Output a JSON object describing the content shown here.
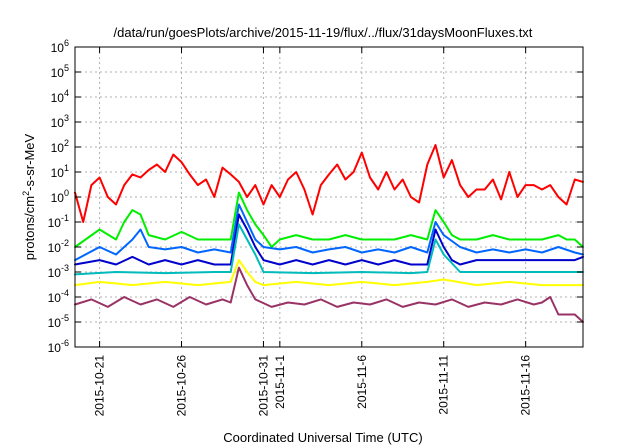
{
  "chart_data": {
    "type": "line",
    "title": "/data/run/goesPlots/archive/2015-11-19/flux/../flux/31daysMoonFluxes.txt",
    "xlabel": "Coordinated Universal Time (UTC)",
    "ylabel_parts": [
      "protons/cm",
      "2",
      "-s-sr-MeV"
    ],
    "y_scale": "log",
    "ylim": [
      1e-06,
      1000000.0
    ],
    "y_ticks": [
      {
        "base": "10",
        "exp": "-6",
        "value": 1e-06
      },
      {
        "base": "10",
        "exp": "-5",
        "value": 1e-05
      },
      {
        "base": "10",
        "exp": "-4",
        "value": 0.0001
      },
      {
        "base": "10",
        "exp": "-3",
        "value": 0.001
      },
      {
        "base": "10",
        "exp": "-2",
        "value": 0.01
      },
      {
        "base": "10",
        "exp": "-1",
        "value": 0.1
      },
      {
        "base": "10",
        "exp": "0",
        "value": 1
      },
      {
        "base": "10",
        "exp": "1",
        "value": 10
      },
      {
        "base": "10",
        "exp": "2",
        "value": 100
      },
      {
        "base": "10",
        "exp": "3",
        "value": 1000
      },
      {
        "base": "10",
        "exp": "4",
        "value": 10000
      },
      {
        "base": "10",
        "exp": "5",
        "value": 100000
      },
      {
        "base": "10",
        "exp": "6",
        "value": 1000000
      }
    ],
    "xlim": [
      "2015-10-19T12:00",
      "2015-11-19T12:00"
    ],
    "x_ticks": [
      {
        "label": "2015-10-21",
        "date": "2015-10-21"
      },
      {
        "label": "2015-10-26",
        "date": "2015-10-26"
      },
      {
        "label": "2015-10-31",
        "date": "2015-10-31"
      },
      {
        "label": "2015-11-1",
        "date": "2015-11-01"
      },
      {
        "label": "2015-11-6",
        "date": "2015-11-06"
      },
      {
        "label": "2015-11-11",
        "date": "2015-11-11"
      },
      {
        "label": "2015-11-16",
        "date": "2015-11-16"
      }
    ],
    "grid": true,
    "series": [
      {
        "color": "#ff0000",
        "x": [
          "2015-10-19T12:00",
          "2015-10-20T00:00",
          "2015-10-20T12:00",
          "2015-10-21T00:00",
          "2015-10-21T12:00",
          "2015-10-22T00:00",
          "2015-10-22T12:00",
          "2015-10-23T00:00",
          "2015-10-23T12:00",
          "2015-10-24T00:00",
          "2015-10-24T12:00",
          "2015-10-25T00:00",
          "2015-10-25T12:00",
          "2015-10-26T00:00",
          "2015-10-26T12:00",
          "2015-10-27T00:00",
          "2015-10-27T12:00",
          "2015-10-28T00:00",
          "2015-10-28T12:00",
          "2015-10-29T00:00",
          "2015-10-29T12:00",
          "2015-10-30T00:00",
          "2015-10-30T12:00",
          "2015-10-31T00:00",
          "2015-10-31T12:00",
          "2015-11-01T00:00",
          "2015-11-01T12:00",
          "2015-11-02T00:00",
          "2015-11-02T12:00",
          "2015-11-03T00:00",
          "2015-11-03T12:00",
          "2015-11-04T00:00",
          "2015-11-04T12:00",
          "2015-11-05T00:00",
          "2015-11-05T12:00",
          "2015-11-06T00:00",
          "2015-11-06T12:00",
          "2015-11-07T00:00",
          "2015-11-07T12:00",
          "2015-11-08T00:00",
          "2015-11-08T12:00",
          "2015-11-09T00:00",
          "2015-11-09T12:00",
          "2015-11-10T00:00",
          "2015-11-10T12:00",
          "2015-11-11T00:00",
          "2015-11-11T12:00",
          "2015-11-12T00:00",
          "2015-11-12T12:00",
          "2015-11-13T00:00",
          "2015-11-13T12:00",
          "2015-11-14T00:00",
          "2015-11-14T12:00",
          "2015-11-15T00:00",
          "2015-11-15T12:00",
          "2015-11-16T00:00",
          "2015-11-16T12:00",
          "2015-11-17T00:00",
          "2015-11-17T12:00",
          "2015-11-18T00:00",
          "2015-11-18T12:00",
          "2015-11-19T00:00",
          "2015-11-19T12:00"
        ],
        "values": [
          1.5,
          0.1,
          3,
          6,
          1,
          0.5,
          3,
          8,
          6,
          12,
          20,
          10,
          50,
          25,
          8,
          3,
          5,
          1,
          15,
          8,
          4,
          1,
          3,
          0.5,
          3,
          1,
          5,
          10,
          2,
          0.2,
          3,
          8,
          20,
          5,
          10,
          60,
          6,
          2,
          10,
          2,
          5,
          1,
          0.6,
          20,
          120,
          6,
          30,
          3,
          1,
          2,
          2,
          5,
          0.8,
          10,
          1,
          3,
          3,
          2,
          3,
          1,
          0.5,
          5,
          4
        ]
      },
      {
        "color": "#00ee00",
        "x": [
          "2015-10-19T12:00",
          "2015-10-21T00:00",
          "2015-10-22T00:00",
          "2015-10-22T12:00",
          "2015-10-23T00:00",
          "2015-10-23T12:00",
          "2015-10-24T00:00",
          "2015-10-25T00:00",
          "2015-10-26T00:00",
          "2015-10-27T00:00",
          "2015-10-28T00:00",
          "2015-10-29T00:00",
          "2015-10-29T12:00",
          "2015-10-30T00:00",
          "2015-10-30T12:00",
          "2015-10-31T00:00",
          "2015-10-31T12:00",
          "2015-11-01T00:00",
          "2015-11-02T00:00",
          "2015-11-03T00:00",
          "2015-11-04T00:00",
          "2015-11-05T00:00",
          "2015-11-06T00:00",
          "2015-11-07T00:00",
          "2015-11-08T00:00",
          "2015-11-09T00:00",
          "2015-11-10T00:00",
          "2015-11-10T12:00",
          "2015-11-11T00:00",
          "2015-11-11T12:00",
          "2015-11-12T00:00",
          "2015-11-13T00:00",
          "2015-11-14T00:00",
          "2015-11-15T00:00",
          "2015-11-16T00:00",
          "2015-11-17T00:00",
          "2015-11-18T00:00",
          "2015-11-18T12:00",
          "2015-11-19T00:00",
          "2015-11-19T12:00"
        ],
        "values": [
          0.01,
          0.05,
          0.02,
          0.1,
          0.3,
          0.2,
          0.03,
          0.02,
          0.04,
          0.02,
          0.02,
          0.02,
          1.5,
          0.3,
          0.08,
          0.03,
          0.01,
          0.02,
          0.03,
          0.02,
          0.02,
          0.03,
          0.02,
          0.02,
          0.02,
          0.03,
          0.02,
          0.3,
          0.1,
          0.03,
          0.02,
          0.02,
          0.03,
          0.02,
          0.02,
          0.02,
          0.03,
          0.02,
          0.02,
          0.01
        ]
      },
      {
        "color": "#0066ff",
        "x": [
          "2015-10-19T12:00",
          "2015-10-21T00:00",
          "2015-10-22T00:00",
          "2015-10-23T00:00",
          "2015-10-23T12:00",
          "2015-10-24T00:00",
          "2015-10-25T00:00",
          "2015-10-26T00:00",
          "2015-10-27T00:00",
          "2015-10-28T00:00",
          "2015-10-29T00:00",
          "2015-10-29T12:00",
          "2015-10-30T00:00",
          "2015-10-30T12:00",
          "2015-10-31T00:00",
          "2015-11-01T00:00",
          "2015-11-02T00:00",
          "2015-11-03T00:00",
          "2015-11-04T00:00",
          "2015-11-05T00:00",
          "2015-11-06T00:00",
          "2015-11-07T00:00",
          "2015-11-08T00:00",
          "2015-11-09T00:00",
          "2015-11-10T00:00",
          "2015-11-10T12:00",
          "2015-11-11T00:00",
          "2015-11-12T00:00",
          "2015-11-13T00:00",
          "2015-11-14T00:00",
          "2015-11-15T00:00",
          "2015-11-16T00:00",
          "2015-11-17T00:00",
          "2015-11-18T00:00",
          "2015-11-19T00:00",
          "2015-11-19T12:00"
        ],
        "values": [
          0.003,
          0.01,
          0.005,
          0.02,
          0.05,
          0.01,
          0.008,
          0.01,
          0.006,
          0.008,
          0.006,
          0.5,
          0.1,
          0.02,
          0.01,
          0.008,
          0.01,
          0.006,
          0.008,
          0.01,
          0.006,
          0.008,
          0.006,
          0.01,
          0.006,
          0.1,
          0.03,
          0.01,
          0.006,
          0.008,
          0.006,
          0.008,
          0.006,
          0.01,
          0.006,
          0.005
        ]
      },
      {
        "color": "#0000cc",
        "x": [
          "2015-10-19T12:00",
          "2015-10-21T00:00",
          "2015-10-22T00:00",
          "2015-10-23T00:00",
          "2015-10-24T00:00",
          "2015-10-25T00:00",
          "2015-10-26T00:00",
          "2015-10-27T00:00",
          "2015-10-28T00:00",
          "2015-10-29T00:00",
          "2015-10-29T12:00",
          "2015-10-30T00:00",
          "2015-10-30T12:00",
          "2015-10-31T00:00",
          "2015-11-01T00:00",
          "2015-11-02T00:00",
          "2015-11-03T00:00",
          "2015-11-04T00:00",
          "2015-11-05T00:00",
          "2015-11-06T00:00",
          "2015-11-07T00:00",
          "2015-11-08T00:00",
          "2015-11-09T00:00",
          "2015-11-10T00:00",
          "2015-11-10T12:00",
          "2015-11-11T00:00",
          "2015-11-11T12:00",
          "2015-11-12T00:00",
          "2015-11-13T00:00",
          "2015-11-14T00:00",
          "2015-11-15T00:00",
          "2015-11-16T00:00",
          "2015-11-17T00:00",
          "2015-11-18T00:00",
          "2015-11-19T00:00",
          "2015-11-19T12:00"
        ],
        "values": [
          0.002,
          0.003,
          0.002,
          0.004,
          0.002,
          0.003,
          0.002,
          0.003,
          0.002,
          0.002,
          0.2,
          0.05,
          0.01,
          0.003,
          0.002,
          0.003,
          0.002,
          0.003,
          0.002,
          0.003,
          0.002,
          0.003,
          0.002,
          0.002,
          0.05,
          0.01,
          0.003,
          0.002,
          0.003,
          0.003,
          0.003,
          0.003,
          0.003,
          0.003,
          0.003,
          0.004
        ]
      },
      {
        "color": "#00bbbb",
        "x": [
          "2015-10-19T12:00",
          "2015-10-22T00:00",
          "2015-10-25T00:00",
          "2015-10-28T00:00",
          "2015-10-29T00:00",
          "2015-10-29T12:00",
          "2015-10-30T00:00",
          "2015-10-30T12:00",
          "2015-10-31T00:00",
          "2015-11-03T00:00",
          "2015-11-06T00:00",
          "2015-11-09T00:00",
          "2015-11-10T00:00",
          "2015-11-10T12:00",
          "2015-11-11T00:00",
          "2015-11-12T00:00",
          "2015-11-15T00:00",
          "2015-11-18T00:00",
          "2015-11-19T12:00"
        ],
        "values": [
          0.0008,
          0.001,
          0.0009,
          0.001,
          0.001,
          0.08,
          0.02,
          0.005,
          0.001,
          0.0009,
          0.001,
          0.0009,
          0.001,
          0.02,
          0.005,
          0.001,
          0.001,
          0.001,
          0.001
        ]
      },
      {
        "color": "#ffff00",
        "x": [
          "2015-10-19T12:00",
          "2015-10-21T00:00",
          "2015-10-23T00:00",
          "2015-10-25T00:00",
          "2015-10-27T00:00",
          "2015-10-29T00:00",
          "2015-10-29T12:00",
          "2015-10-30T00:00",
          "2015-10-30T12:00",
          "2015-10-31T00:00",
          "2015-11-02T00:00",
          "2015-11-04T00:00",
          "2015-11-06T00:00",
          "2015-11-08T00:00",
          "2015-11-10T00:00",
          "2015-11-11T00:00",
          "2015-11-13T00:00",
          "2015-11-15T00:00",
          "2015-11-17T00:00",
          "2015-11-19T12:00"
        ],
        "values": [
          0.0003,
          0.0004,
          0.0003,
          0.0004,
          0.0003,
          0.0004,
          0.003,
          0.001,
          0.0004,
          0.0003,
          0.0004,
          0.0003,
          0.0004,
          0.0003,
          0.0004,
          0.0005,
          0.0003,
          0.0004,
          0.0003,
          0.0003
        ]
      },
      {
        "color": "#993366",
        "x": [
          "2015-10-19T12:00",
          "2015-10-20T12:00",
          "2015-10-21T12:00",
          "2015-10-22T12:00",
          "2015-10-23T12:00",
          "2015-10-24T12:00",
          "2015-10-25T12:00",
          "2015-10-26T12:00",
          "2015-10-27T12:00",
          "2015-10-28T12:00",
          "2015-10-29T00:00",
          "2015-10-29T12:00",
          "2015-10-30T00:00",
          "2015-10-30T12:00",
          "2015-10-31T12:00",
          "2015-11-01T12:00",
          "2015-11-02T12:00",
          "2015-11-03T12:00",
          "2015-11-04T12:00",
          "2015-11-05T12:00",
          "2015-11-06T12:00",
          "2015-11-07T12:00",
          "2015-11-08T12:00",
          "2015-11-09T12:00",
          "2015-11-10T12:00",
          "2015-11-11T12:00",
          "2015-11-12T12:00",
          "2015-11-13T12:00",
          "2015-11-14T12:00",
          "2015-11-15T12:00",
          "2015-11-16T12:00",
          "2015-11-17T00:00",
          "2015-11-17T12:00",
          "2015-11-18T00:00",
          "2015-11-18T12:00",
          "2015-11-19T00:00",
          "2015-11-19T12:00"
        ],
        "values": [
          5e-05,
          8e-05,
          4e-05,
          0.0001,
          5e-05,
          8e-05,
          4e-05,
          0.0001,
          5e-05,
          8e-05,
          6e-05,
          0.0015,
          0.0003,
          8e-05,
          4e-05,
          6e-05,
          5e-05,
          8e-05,
          4e-05,
          6e-05,
          5e-05,
          8e-05,
          4e-05,
          6e-05,
          5e-05,
          8e-05,
          4e-05,
          6e-05,
          5e-05,
          8e-05,
          5e-05,
          6e-05,
          0.0001,
          2e-05,
          2e-05,
          2e-05,
          1e-05
        ]
      }
    ]
  }
}
